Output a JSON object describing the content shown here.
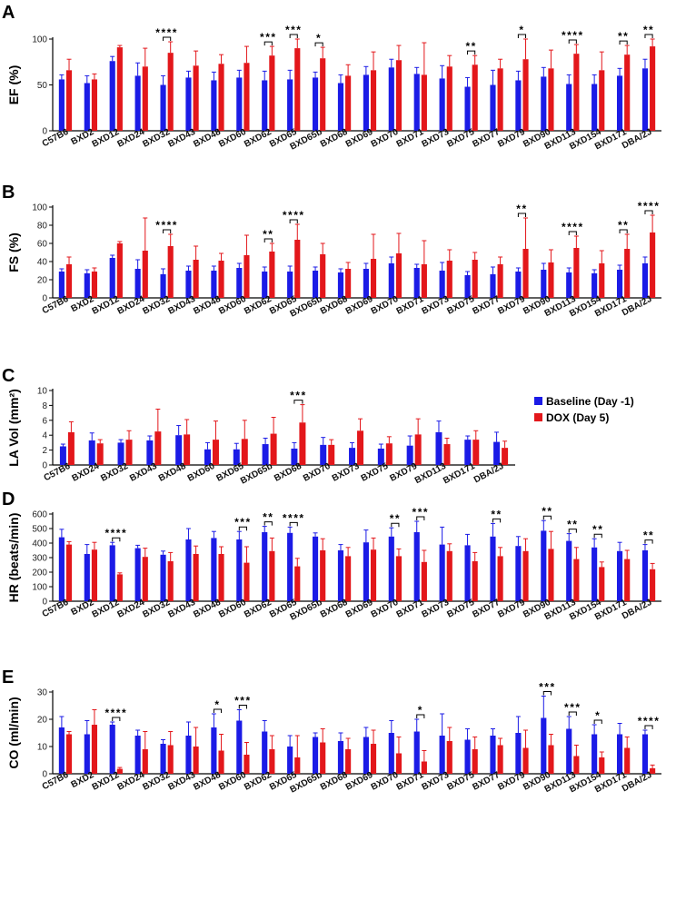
{
  "legend": {
    "baseline": "Baseline (Day -1)",
    "dox": "DOX (Day 5)",
    "colors": {
      "baseline": "#1b1be6",
      "dox": "#e3171b"
    }
  },
  "chart_data": [
    {
      "type": "bar",
      "panel": "A",
      "ylabel": "EF (%)",
      "ylim": [
        0,
        100
      ],
      "yticks": [
        0,
        50,
        100
      ],
      "categories": [
        "C57B6",
        "BXD2",
        "BXD12",
        "BXD24",
        "BXD32",
        "BXD43",
        "BXD48",
        "BXD60",
        "BXD62",
        "BXD65",
        "BXD65b",
        "BXD68",
        "BXD69",
        "BXD70",
        "BXD71",
        "BXD73",
        "BXD75",
        "BXD77",
        "BXD79",
        "BXD90",
        "BXD113",
        "BXD154",
        "BXD171",
        "DBA/2J"
      ],
      "series": [
        {
          "name": "Baseline (Day -1)",
          "values": [
            56,
            52,
            76,
            60,
            50,
            58,
            55,
            58,
            55,
            56,
            58,
            52,
            61,
            69,
            62,
            57,
            48,
            50,
            55,
            59,
            51,
            51,
            60,
            68
          ],
          "errors": [
            5,
            8,
            5,
            14,
            10,
            7,
            9,
            8,
            10,
            10,
            6,
            9,
            9,
            9,
            7,
            14,
            10,
            16,
            10,
            10,
            10,
            10,
            8,
            10
          ]
        },
        {
          "name": "DOX (Day 5)",
          "values": [
            66,
            56,
            91,
            70,
            85,
            71,
            73,
            74,
            82,
            90,
            79,
            60,
            66,
            77,
            61,
            70,
            72,
            68,
            78,
            68,
            84,
            66,
            83,
            92
          ],
          "errors": [
            12,
            6,
            2,
            20,
            12,
            16,
            10,
            18,
            10,
            10,
            12,
            12,
            20,
            16,
            35,
            12,
            10,
            10,
            22,
            20,
            10,
            20,
            10,
            8
          ]
        }
      ],
      "significance": [
        {
          "category": "BXD32",
          "label": "****"
        },
        {
          "category": "BXD62",
          "label": "***"
        },
        {
          "category": "BXD65",
          "label": "***"
        },
        {
          "category": "BXD65b",
          "label": "*"
        },
        {
          "category": "BXD75",
          "label": "**"
        },
        {
          "category": "BXD79",
          "label": "*"
        },
        {
          "category": "BXD113",
          "label": "****"
        },
        {
          "category": "BXD171",
          "label": "**"
        },
        {
          "category": "DBA/2J",
          "label": "**"
        }
      ]
    },
    {
      "type": "bar",
      "panel": "B",
      "ylabel": "FS (%)",
      "ylim": [
        0,
        100
      ],
      "yticks": [
        0,
        20,
        40,
        60,
        80,
        100
      ],
      "categories": [
        "C57B6",
        "BXD2",
        "BXD12",
        "BXD24",
        "BXD32",
        "BXD43",
        "BXD48",
        "BXD60",
        "BXD62",
        "BXD65",
        "BXD65b",
        "BXD68",
        "BXD69",
        "BXD70",
        "BXD71",
        "BXD73",
        "BXD75",
        "BXD77",
        "BXD79",
        "BXD90",
        "BXD113",
        "BXD154",
        "BXD171",
        "DBA/2J"
      ],
      "series": [
        {
          "name": "Baseline (Day -1)",
          "values": [
            29,
            27,
            44,
            32,
            26,
            30,
            30,
            33,
            29,
            29,
            30,
            28,
            32,
            38,
            33,
            30,
            25,
            26,
            29,
            31,
            28,
            27,
            31,
            38
          ],
          "errors": [
            3,
            4,
            3,
            10,
            6,
            5,
            5,
            5,
            5,
            6,
            4,
            4,
            6,
            7,
            4,
            9,
            4,
            8,
            4,
            7,
            5,
            4,
            5,
            7
          ]
        },
        {
          "name": "DOX (Day 5)",
          "values": [
            37,
            29,
            60,
            52,
            57,
            42,
            41,
            47,
            51,
            64,
            48,
            32,
            43,
            49,
            37,
            41,
            42,
            37,
            54,
            39,
            55,
            38,
            54,
            72
          ],
          "errors": [
            8,
            4,
            2,
            36,
            13,
            15,
            8,
            22,
            9,
            17,
            12,
            7,
            27,
            22,
            26,
            12,
            8,
            8,
            34,
            14,
            13,
            14,
            16,
            19
          ]
        }
      ],
      "significance": [
        {
          "category": "BXD32",
          "label": "****"
        },
        {
          "category": "BXD62",
          "label": "**"
        },
        {
          "category": "BXD65",
          "label": "****"
        },
        {
          "category": "BXD79",
          "label": "**"
        },
        {
          "category": "BXD113",
          "label": "****"
        },
        {
          "category": "BXD171",
          "label": "**"
        },
        {
          "category": "DBA/2J",
          "label": "****"
        }
      ]
    },
    {
      "type": "bar",
      "panel": "C",
      "ylabel": "LA Vol (mm²)",
      "ylim": [
        0,
        10
      ],
      "yticks": [
        0,
        2,
        4,
        6,
        8,
        10
      ],
      "categories": [
        "C57B6",
        "BXD24",
        "BXD32",
        "BXD43",
        "BXD48",
        "BXD60",
        "BXD65",
        "BXD65b",
        "BXD68",
        "BXD70",
        "BXD73",
        "BXD75",
        "BXD79",
        "BXD113",
        "BXD171",
        "DBA/2J"
      ],
      "series": [
        {
          "name": "Baseline (Day -1)",
          "values": [
            2.5,
            3.3,
            3.0,
            3.3,
            4.0,
            2.1,
            2.1,
            2.8,
            2.2,
            2.7,
            2.3,
            2.2,
            2.6,
            4.4,
            3.4,
            3.1
          ],
          "errors": [
            0.3,
            1.0,
            0.4,
            0.6,
            1.3,
            0.9,
            0.8,
            0.8,
            0.8,
            1.0,
            0.7,
            0.6,
            1.3,
            1.5,
            0.5,
            1.3
          ]
        },
        {
          "name": "DOX (Day 5)",
          "values": [
            4.4,
            2.9,
            3.4,
            4.5,
            4.1,
            3.4,
            3.5,
            4.2,
            5.7,
            2.7,
            4.6,
            2.9,
            4.1,
            2.8,
            3.4,
            2.3
          ],
          "errors": [
            1.4,
            0.5,
            1.2,
            3.0,
            2.0,
            2.5,
            2.5,
            2.2,
            2.4,
            0.7,
            1.6,
            0.9,
            2.1,
            0.8,
            1.2,
            0.9
          ]
        }
      ],
      "significance": [
        {
          "category": "BXD68",
          "label": "***"
        }
      ]
    },
    {
      "type": "bar",
      "panel": "D",
      "ylabel": "HR (beats/min)",
      "ylim": [
        0,
        600
      ],
      "yticks": [
        0,
        100,
        200,
        300,
        400,
        500,
        600
      ],
      "categories": [
        "C57B6",
        "BXD2",
        "BXD12",
        "BXD24",
        "BXD32",
        "BXD43",
        "BXD48",
        "BXD60",
        "BXD62",
        "BXD65",
        "BXD65b",
        "BXD68",
        "BXD69",
        "BXD70",
        "BXD71",
        "BXD73",
        "BXD75",
        "BXD77",
        "BXD79",
        "BXD90",
        "BXD113",
        "BXD154",
        "BXD171",
        "DBA/2J"
      ],
      "series": [
        {
          "name": "Baseline (Day -1)",
          "values": [
            440,
            325,
            385,
            365,
            320,
            425,
            435,
            425,
            475,
            470,
            445,
            350,
            405,
            445,
            475,
            390,
            385,
            445,
            380,
            485,
            415,
            370,
            345,
            350
          ],
          "errors": [
            55,
            65,
            20,
            20,
            25,
            75,
            45,
            55,
            40,
            40,
            25,
            40,
            85,
            60,
            75,
            120,
            75,
            90,
            65,
            70,
            50,
            60,
            60,
            40
          ]
        },
        {
          "name": "DOX (Day 5)",
          "values": [
            390,
            355,
            185,
            305,
            275,
            325,
            325,
            265,
            345,
            240,
            350,
            310,
            355,
            310,
            270,
            345,
            275,
            310,
            345,
            360,
            290,
            235,
            290,
            220
          ],
          "errors": [
            20,
            50,
            10,
            60,
            60,
            55,
            50,
            110,
            90,
            55,
            80,
            60,
            80,
            50,
            80,
            50,
            60,
            60,
            85,
            120,
            80,
            35,
            60,
            40
          ]
        }
      ],
      "significance": [
        {
          "category": "BXD12",
          "label": "****"
        },
        {
          "category": "BXD60",
          "label": "***"
        },
        {
          "category": "BXD62",
          "label": "**"
        },
        {
          "category": "BXD65",
          "label": "****"
        },
        {
          "category": "BXD70",
          "label": "**"
        },
        {
          "category": "BXD71",
          "label": "***"
        },
        {
          "category": "BXD77",
          "label": "**"
        },
        {
          "category": "BXD90",
          "label": "**"
        },
        {
          "category": "BXD113",
          "label": "**"
        },
        {
          "category": "BXD154",
          "label": "**"
        },
        {
          "category": "DBA/2J",
          "label": "**"
        }
      ]
    },
    {
      "type": "bar",
      "panel": "E",
      "ylabel": "CO (ml/min)",
      "ylim": [
        0,
        30
      ],
      "yticks": [
        0,
        10,
        20,
        30
      ],
      "categories": [
        "C57B6",
        "BXD2",
        "BXD12",
        "BXD24",
        "BXD32",
        "BXD43",
        "BXD48",
        "BXD60",
        "BXD62",
        "BXD65",
        "BXD65b",
        "BXD68",
        "BXD69",
        "BXD70",
        "BXD71",
        "BXD73",
        "BXD75",
        "BXD77",
        "BXD79",
        "BXD90",
        "BXD113",
        "BXD154",
        "BXD171",
        "DBA/2J"
      ],
      "series": [
        {
          "name": "Baseline (Day -1)",
          "values": [
            17,
            14.5,
            18,
            14,
            11,
            14,
            17,
            19.5,
            15.5,
            10,
            13.5,
            12,
            13.5,
            15,
            15.5,
            14,
            12.5,
            14,
            15,
            20.5,
            16.5,
            14.5,
            14.5,
            14.5
          ],
          "errors": [
            4,
            5,
            1,
            2,
            1.5,
            5,
            5,
            4,
            4,
            4,
            1.5,
            3,
            3.5,
            4.5,
            4.5,
            8,
            4,
            2.5,
            6,
            8,
            4.5,
            3.5,
            4,
            1.5
          ]
        },
        {
          "name": "DOX (Day 5)",
          "values": [
            14.5,
            18,
            1.8,
            9,
            10.5,
            10,
            8.5,
            7,
            9,
            6,
            11.5,
            9,
            11,
            7.5,
            4.5,
            12,
            9,
            10.5,
            9.5,
            10.5,
            6.5,
            6,
            9.5,
            2
          ],
          "errors": [
            1,
            5.5,
            0.5,
            6.5,
            5,
            7,
            6,
            4.5,
            5,
            8,
            5,
            4,
            5,
            6,
            4,
            5,
            4.5,
            2.5,
            6.5,
            4,
            4,
            2,
            4,
            1.2
          ]
        }
      ],
      "significance": [
        {
          "category": "BXD12",
          "label": "****"
        },
        {
          "category": "BXD48",
          "label": "*"
        },
        {
          "category": "BXD60",
          "label": "***"
        },
        {
          "category": "BXD71",
          "label": "*"
        },
        {
          "category": "BXD90",
          "label": "***"
        },
        {
          "category": "BXD113",
          "label": "***"
        },
        {
          "category": "BXD154",
          "label": "*"
        },
        {
          "category": "DBA/2J",
          "label": "****"
        }
      ]
    }
  ]
}
